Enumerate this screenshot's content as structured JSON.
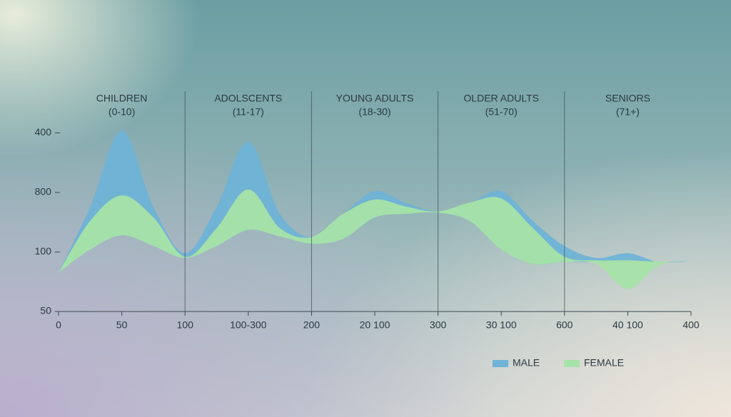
{
  "chart_data": {
    "type": "area",
    "sections": [
      {
        "name": "CHILDREN",
        "range": "(0-10)"
      },
      {
        "name": "ADOLSCENTS",
        "range": "(11-17)"
      },
      {
        "name": "YOUNG ADULTS",
        "range": "(18-30)"
      },
      {
        "name": "OLDER ADULTS",
        "range": "(51-70)"
      },
      {
        "name": "SENIORS",
        "range": "(71+)"
      }
    ],
    "x": [
      0,
      0.5,
      1,
      1.5,
      2,
      2.5,
      3,
      3.5,
      4,
      4.5,
      5,
      5.5,
      6,
      6.5,
      7,
      7.5,
      8,
      8.5,
      9,
      9.5,
      10
    ],
    "xlim": [
      0,
      10
    ],
    "xticks": [
      {
        "value": 0,
        "label": "0"
      },
      {
        "value": 1,
        "label": "50"
      },
      {
        "value": 2,
        "label": "100"
      },
      {
        "value": 3,
        "label": "100-300"
      },
      {
        "value": 4,
        "label": "200"
      },
      {
        "value": 5,
        "label": "20 100"
      },
      {
        "value": 6,
        "label": "300"
      },
      {
        "value": 7,
        "label": "30 100"
      },
      {
        "value": 8,
        "label": "600"
      },
      {
        "value": 9,
        "label": "40 100"
      },
      {
        "value": 10,
        "label": "400"
      }
    ],
    "ylim": [
      0,
      3.7
    ],
    "yticks": [
      {
        "value": 0,
        "label": "50"
      },
      {
        "value": 1,
        "label": "100"
      },
      {
        "value": 2,
        "label": "800"
      },
      {
        "value": 3,
        "label": "400"
      }
    ],
    "series": [
      {
        "name": "MALE",
        "color": "#6fb3d6",
        "values": [
          0.65,
          1.76,
          3.04,
          1.76,
          0.98,
          1.76,
          2.86,
          1.64,
          1.25,
          1.64,
          2.02,
          1.82,
          1.68,
          1.82,
          2.02,
          1.52,
          1.1,
          0.9,
          0.98,
          0.83,
          0.85
        ],
        "base": [
          0.65,
          1.04,
          1.28,
          1.1,
          0.9,
          1.1,
          1.37,
          1.26,
          1.14,
          1.22,
          1.58,
          1.64,
          1.66,
          1.52,
          1.04,
          0.8,
          0.83,
          0.83,
          0.83,
          0.83,
          0.85
        ]
      },
      {
        "name": "FEMALE",
        "color": "#a6e3a8",
        "values": [
          0.65,
          1.52,
          1.95,
          1.58,
          0.92,
          1.4,
          2.05,
          1.4,
          1.25,
          1.64,
          1.88,
          1.76,
          1.68,
          1.83,
          1.9,
          1.4,
          0.92,
          0.86,
          0.86,
          0.84,
          0.85
        ],
        "base": [
          0.65,
          1.04,
          1.28,
          1.1,
          0.9,
          1.1,
          1.37,
          1.26,
          1.14,
          1.22,
          1.58,
          1.64,
          1.66,
          1.52,
          1.04,
          0.8,
          0.83,
          0.8,
          0.38,
          0.78,
          0.85
        ]
      }
    ],
    "legend": "bottom-right"
  }
}
